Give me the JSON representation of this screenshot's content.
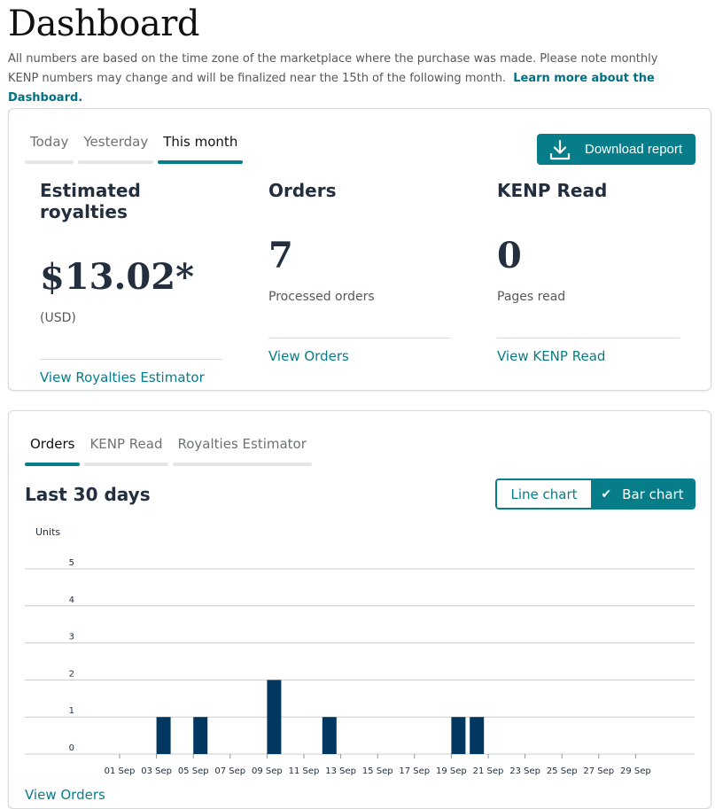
{
  "header": {
    "title": "Dashboard",
    "subtitle": "All numbers are based on the time zone of the marketplace where the purchase was made. Please note monthly KENP numbers may change and will be finalized near the 15th of the following month.",
    "learn_more": "Learn more about the Dashboard."
  },
  "summary": {
    "tabs": [
      {
        "label": "Today"
      },
      {
        "label": "Yesterday"
      },
      {
        "label": "This month",
        "active": true
      }
    ],
    "download_label": "Download report",
    "metrics": [
      {
        "title": "Estimated royalties",
        "value": "$13.02*",
        "sub": "(USD)",
        "link": "View Royalties Estimator"
      },
      {
        "title": "Orders",
        "value": "7",
        "sub": "Processed orders",
        "link": "View Orders"
      },
      {
        "title": "KENP Read",
        "value": "0",
        "sub": "Pages read",
        "link": "View KENP Read"
      }
    ]
  },
  "chart_panel": {
    "tabs": [
      {
        "label": "Orders",
        "active": true
      },
      {
        "label": "KENP Read"
      },
      {
        "label": "Royalties Estimator"
      }
    ],
    "title": "Last 30 days",
    "toggle": {
      "line_label": "Line chart",
      "bar_label": "Bar chart",
      "selected": "bar"
    },
    "view_link": "View Orders"
  },
  "chart_data": {
    "type": "bar",
    "ylabel": "Units",
    "ylim": [
      0,
      5
    ],
    "yticks": [
      0,
      1,
      2,
      3,
      4,
      5
    ],
    "grid": true,
    "x_ticks": [
      "01 Sep",
      "03 Sep",
      "05 Sep",
      "07 Sep",
      "09 Sep",
      "11 Sep",
      "13 Sep",
      "15 Sep",
      "17 Sep",
      "19 Sep",
      "21 Sep",
      "23 Sep",
      "25 Sep",
      "27 Sep",
      "29 Sep"
    ],
    "categories": [
      "01 Sep",
      "02 Sep",
      "03 Sep",
      "04 Sep",
      "05 Sep",
      "06 Sep",
      "07 Sep",
      "08 Sep",
      "09 Sep",
      "10 Sep",
      "11 Sep",
      "12 Sep",
      "13 Sep",
      "14 Sep",
      "15 Sep",
      "16 Sep",
      "17 Sep",
      "18 Sep",
      "19 Sep",
      "20 Sep",
      "21 Sep",
      "22 Sep",
      "23 Sep",
      "24 Sep",
      "25 Sep",
      "26 Sep",
      "27 Sep",
      "28 Sep",
      "29 Sep",
      "30 Sep"
    ],
    "values": [
      0,
      0,
      1,
      0,
      1,
      0,
      0,
      0,
      2,
      0,
      0,
      1,
      0,
      0,
      0,
      0,
      0,
      0,
      1,
      1,
      0,
      0,
      0,
      0,
      0,
      0,
      0,
      0,
      0,
      0
    ],
    "bar_color": "#023860"
  }
}
